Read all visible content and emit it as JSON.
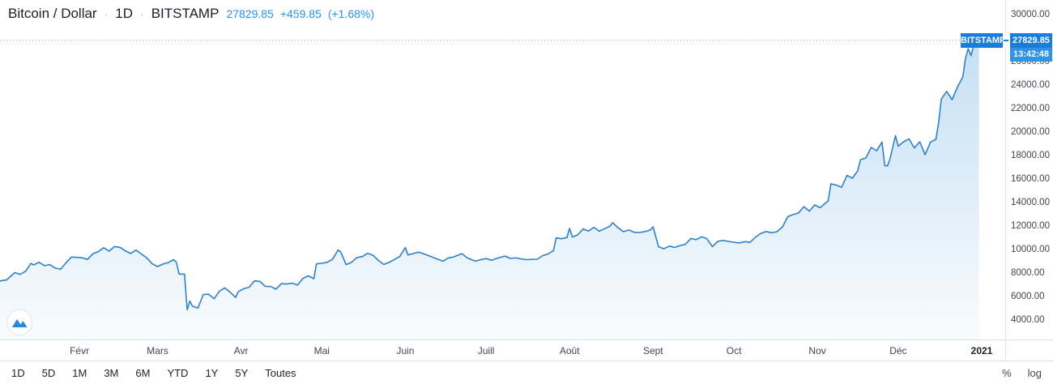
{
  "header": {
    "symbol": "Bitcoin / Dollar",
    "separator": "·",
    "interval": "1D",
    "exchange": "BITSTAMP",
    "last_price": "27829.85",
    "change": "+459.85",
    "change_pct": "(+1.68%)"
  },
  "price_axis": {
    "ticks": [
      {
        "label": "30000.00",
        "value": 30000
      },
      {
        "label": "28000.00",
        "value": 28000
      },
      {
        "label": "26000.00",
        "value": 26000
      },
      {
        "label": "24000.00",
        "value": 24000
      },
      {
        "label": "22000.00",
        "value": 22000
      },
      {
        "label": "20000.00",
        "value": 20000
      },
      {
        "label": "18000.00",
        "value": 18000
      },
      {
        "label": "16000.00",
        "value": 16000
      },
      {
        "label": "14000.00",
        "value": 14000
      },
      {
        "label": "12000.00",
        "value": 12000
      },
      {
        "label": "10000.00",
        "value": 10000
      },
      {
        "label": "8000.00",
        "value": 8000
      },
      {
        "label": "6000.00",
        "value": 6000
      },
      {
        "label": "4000.00",
        "value": 4000
      }
    ],
    "badge": {
      "exchange": "BITSTAMP",
      "price": "27829.85",
      "countdown": "13:42:48"
    }
  },
  "time_axis": {
    "ticks": [
      {
        "label": "Févr",
        "day": 32
      },
      {
        "label": "Mars",
        "day": 61
      },
      {
        "label": "Avr",
        "day": 92
      },
      {
        "label": "Mai",
        "day": 122
      },
      {
        "label": "Juin",
        "day": 153
      },
      {
        "label": "Juill",
        "day": 183
      },
      {
        "label": "Août",
        "day": 214
      },
      {
        "label": "Sept",
        "day": 245
      },
      {
        "label": "Oct",
        "day": 275
      },
      {
        "label": "Nov",
        "day": 306
      },
      {
        "label": "Déc",
        "day": 336
      },
      {
        "label": "2021",
        "day": 367,
        "bold": true
      }
    ]
  },
  "toolbar": {
    "ranges": [
      "1D",
      "5D",
      "1M",
      "3M",
      "6M",
      "YTD",
      "1Y",
      "5Y",
      "Toutes"
    ],
    "scale_buttons": [
      "%",
      "log"
    ]
  },
  "colors": {
    "accent_blue": "#2196f3",
    "line_blue": "#2e81c9",
    "fill_blue": "#2186d2",
    "badge_blue": "#1d7cd8",
    "countdown_blue": "#2f93e6",
    "axis_line": "#dde1e8",
    "text_primary": "#1b1f27",
    "text_secondary": "#42464e",
    "dotted_line": "#8fa7bd"
  },
  "chart_data": {
    "type": "area",
    "title": "Bitcoin / Dollar",
    "exchange": "BITSTAMP",
    "interval": "1D",
    "x_unit": "day_of_year_2020",
    "x_domain_days": [
      1,
      367
    ],
    "ylim": [
      2400,
      31250
    ],
    "y_tick_step": 2000,
    "last_price": 27829.85,
    "grid": "off",
    "legend_position": "top-left",
    "points": [
      [
        1,
        7200
      ],
      [
        3,
        7350
      ],
      [
        5,
        7420
      ],
      [
        8,
        8040
      ],
      [
        10,
        7880
      ],
      [
        12,
        8150
      ],
      [
        14,
        8820
      ],
      [
        15,
        8680
      ],
      [
        17,
        8920
      ],
      [
        19,
        8630
      ],
      [
        21,
        8720
      ],
      [
        23,
        8420
      ],
      [
        25,
        8320
      ],
      [
        27,
        8870
      ],
      [
        29,
        9360
      ],
      [
        31,
        9330
      ],
      [
        33,
        9300
      ],
      [
        35,
        9160
      ],
      [
        37,
        9640
      ],
      [
        39,
        9820
      ],
      [
        41,
        10150
      ],
      [
        43,
        9860
      ],
      [
        45,
        10250
      ],
      [
        47,
        10190
      ],
      [
        49,
        9890
      ],
      [
        51,
        9660
      ],
      [
        53,
        9950
      ],
      [
        55,
        9620
      ],
      [
        57,
        9290
      ],
      [
        59,
        8780
      ],
      [
        61,
        8550
      ],
      [
        63,
        8760
      ],
      [
        65,
        8890
      ],
      [
        67,
        9140
      ],
      [
        68,
        8900
      ],
      [
        69,
        7920
      ],
      [
        71,
        7900
      ],
      [
        72,
        4860
      ],
      [
        73,
        5610
      ],
      [
        74,
        5170
      ],
      [
        76,
        5020
      ],
      [
        78,
        6170
      ],
      [
        80,
        6190
      ],
      [
        82,
        5810
      ],
      [
        84,
        6460
      ],
      [
        86,
        6740
      ],
      [
        88,
        6360
      ],
      [
        90,
        5920
      ],
      [
        91,
        6420
      ],
      [
        93,
        6660
      ],
      [
        95,
        6790
      ],
      [
        97,
        7330
      ],
      [
        99,
        7280
      ],
      [
        101,
        6870
      ],
      [
        103,
        6850
      ],
      [
        105,
        6630
      ],
      [
        107,
        7100
      ],
      [
        109,
        7060
      ],
      [
        111,
        7130
      ],
      [
        113,
        6970
      ],
      [
        115,
        7550
      ],
      [
        117,
        7760
      ],
      [
        119,
        7510
      ],
      [
        120,
        8780
      ],
      [
        122,
        8830
      ],
      [
        124,
        8920
      ],
      [
        126,
        9170
      ],
      [
        128,
        9950
      ],
      [
        129,
        9790
      ],
      [
        131,
        8720
      ],
      [
        133,
        8910
      ],
      [
        135,
        9320
      ],
      [
        137,
        9390
      ],
      [
        139,
        9680
      ],
      [
        141,
        9510
      ],
      [
        143,
        9070
      ],
      [
        145,
        8730
      ],
      [
        147,
        8910
      ],
      [
        149,
        9160
      ],
      [
        151,
        9430
      ],
      [
        153,
        10170
      ],
      [
        154,
        9530
      ],
      [
        156,
        9660
      ],
      [
        158,
        9770
      ],
      [
        160,
        9620
      ],
      [
        162,
        9450
      ],
      [
        164,
        9270
      ],
      [
        167,
        9010
      ],
      [
        169,
        9290
      ],
      [
        171,
        9370
      ],
      [
        174,
        9650
      ],
      [
        176,
        9280
      ],
      [
        179,
        9010
      ],
      [
        181,
        9140
      ],
      [
        183,
        9230
      ],
      [
        185,
        9090
      ],
      [
        187,
        9250
      ],
      [
        190,
        9440
      ],
      [
        192,
        9240
      ],
      [
        194,
        9290
      ],
      [
        196,
        9200
      ],
      [
        198,
        9140
      ],
      [
        200,
        9160
      ],
      [
        202,
        9170
      ],
      [
        204,
        9480
      ],
      [
        206,
        9620
      ],
      [
        208,
        9910
      ],
      [
        209,
        10990
      ],
      [
        211,
        10920
      ],
      [
        213,
        11020
      ],
      [
        214,
        11800
      ],
      [
        215,
        11070
      ],
      [
        217,
        11240
      ],
      [
        219,
        11750
      ],
      [
        221,
        11570
      ],
      [
        223,
        11890
      ],
      [
        225,
        11560
      ],
      [
        227,
        11770
      ],
      [
        229,
        11990
      ],
      [
        230,
        12290
      ],
      [
        232,
        11850
      ],
      [
        234,
        11520
      ],
      [
        236,
        11660
      ],
      [
        238,
        11460
      ],
      [
        240,
        11450
      ],
      [
        242,
        11530
      ],
      [
        244,
        11670
      ],
      [
        245,
        11930
      ],
      [
        247,
        10240
      ],
      [
        249,
        10070
      ],
      [
        251,
        10290
      ],
      [
        253,
        10180
      ],
      [
        255,
        10340
      ],
      [
        257,
        10450
      ],
      [
        259,
        10940
      ],
      [
        261,
        10840
      ],
      [
        263,
        11080
      ],
      [
        265,
        10910
      ],
      [
        267,
        10250
      ],
      [
        269,
        10690
      ],
      [
        271,
        10780
      ],
      [
        273,
        10690
      ],
      [
        275,
        10620
      ],
      [
        277,
        10560
      ],
      [
        279,
        10670
      ],
      [
        281,
        10610
      ],
      [
        283,
        11060
      ],
      [
        285,
        11370
      ],
      [
        287,
        11530
      ],
      [
        289,
        11430
      ],
      [
        291,
        11520
      ],
      [
        293,
        11920
      ],
      [
        295,
        12800
      ],
      [
        297,
        12970
      ],
      [
        299,
        13120
      ],
      [
        301,
        13650
      ],
      [
        303,
        13270
      ],
      [
        305,
        13790
      ],
      [
        307,
        13560
      ],
      [
        309,
        13950
      ],
      [
        310,
        14140
      ],
      [
        311,
        15590
      ],
      [
        313,
        15480
      ],
      [
        315,
        15290
      ],
      [
        317,
        16320
      ],
      [
        319,
        16070
      ],
      [
        321,
        16720
      ],
      [
        322,
        17650
      ],
      [
        324,
        17790
      ],
      [
        326,
        18690
      ],
      [
        328,
        18410
      ],
      [
        330,
        19150
      ],
      [
        331,
        17150
      ],
      [
        332,
        17120
      ],
      [
        333,
        17750
      ],
      [
        335,
        19690
      ],
      [
        336,
        18790
      ],
      [
        338,
        19170
      ],
      [
        340,
        19420
      ],
      [
        342,
        18650
      ],
      [
        344,
        19170
      ],
      [
        346,
        18060
      ],
      [
        348,
        19150
      ],
      [
        350,
        19380
      ],
      [
        351,
        20800
      ],
      [
        352,
        22810
      ],
      [
        354,
        23460
      ],
      [
        356,
        22760
      ],
      [
        358,
        23830
      ],
      [
        360,
        24710
      ],
      [
        361,
        26290
      ],
      [
        362,
        27090
      ],
      [
        363,
        26510
      ],
      [
        364,
        27330
      ],
      [
        365,
        28050
      ],
      [
        366,
        27829.85
      ]
    ]
  }
}
